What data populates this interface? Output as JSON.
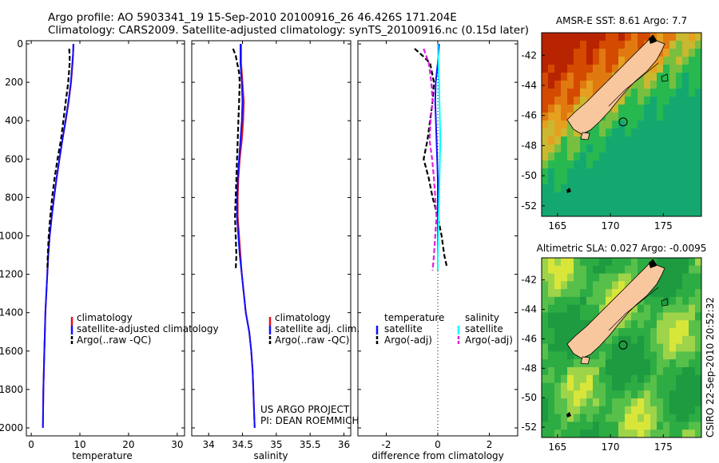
{
  "header": {
    "line1": "Argo profile: AO 5903341_19 15-Sep-2010 20100916_26 46.426S 171.204E",
    "line2": "Climatology: CARS2009. Satellite-adjusted climatology: synTS_20100916.nc (0.15d later)"
  },
  "credits": {
    "project": "US ARGO PROJECT",
    "pi": "PI: DEAN ROEMMICH",
    "stamp": "CSIRO 22-Sep-2010 20:52:32"
  },
  "depth_axis": {
    "ylim": [
      0,
      2000
    ],
    "ticks": [
      "0",
      "200",
      "400",
      "600",
      "800",
      "1000",
      "1200",
      "1400",
      "1600",
      "1800",
      "2000"
    ],
    "reversed": true
  },
  "chart_data": [
    {
      "type": "line",
      "id": "temperature",
      "xlabel": "temperature",
      "xlim": [
        -1,
        31.5
      ],
      "xticks": [
        0,
        10,
        20,
        30
      ],
      "xtick_labels": [
        "0",
        "10",
        "20",
        "30"
      ],
      "ylim": [
        0,
        2000
      ],
      "series": [
        {
          "name": "climatology",
          "color": "#e0101a",
          "dash": "solid",
          "points": [
            [
              8.7,
              0
            ],
            [
              8.6,
              50
            ],
            [
              8.5,
              100
            ],
            [
              8.2,
              200
            ],
            [
              7.7,
              300
            ],
            [
              7.1,
              400
            ],
            [
              6.4,
              500
            ],
            [
              5.8,
              600
            ],
            [
              5.2,
              700
            ],
            [
              4.7,
              800
            ],
            [
              4.2,
              900
            ],
            [
              3.8,
              1000
            ],
            [
              3.5,
              1100
            ],
            [
              3.3,
              1200
            ],
            [
              3.1,
              1300
            ],
            [
              2.9,
              1400
            ],
            [
              2.8,
              1500
            ],
            [
              2.7,
              1600
            ],
            [
              2.6,
              1700
            ],
            [
              2.5,
              1800
            ],
            [
              2.45,
              1900
            ],
            [
              2.4,
              2000
            ]
          ]
        },
        {
          "name": "satellite-adjusted climatology",
          "color": "#1010ff",
          "dash": "solid",
          "points": [
            [
              8.65,
              0
            ],
            [
              8.6,
              50
            ],
            [
              8.45,
              100
            ],
            [
              8.15,
              200
            ],
            [
              7.65,
              300
            ],
            [
              7.05,
              400
            ],
            [
              6.4,
              500
            ],
            [
              5.8,
              600
            ],
            [
              5.2,
              700
            ],
            [
              4.7,
              800
            ],
            [
              4.2,
              900
            ],
            [
              3.8,
              1000
            ],
            [
              3.5,
              1100
            ],
            [
              3.3,
              1200
            ],
            [
              3.1,
              1300
            ],
            [
              2.9,
              1400
            ],
            [
              2.8,
              1500
            ],
            [
              2.7,
              1600
            ],
            [
              2.6,
              1700
            ],
            [
              2.5,
              1800
            ],
            [
              2.45,
              1900
            ],
            [
              2.4,
              2000
            ]
          ]
        },
        {
          "name": "Argo(..raw -QC)",
          "color": "#000000",
          "dash": "dashed",
          "points": [
            [
              7.8,
              25
            ],
            [
              7.9,
              60
            ],
            [
              7.9,
              100
            ],
            [
              7.6,
              200
            ],
            [
              7.1,
              300
            ],
            [
              6.6,
              400
            ],
            [
              6.1,
              500
            ],
            [
              5.4,
              600
            ],
            [
              4.8,
              700
            ],
            [
              4.3,
              800
            ],
            [
              3.9,
              900
            ],
            [
              3.6,
              1000
            ],
            [
              3.4,
              1100
            ],
            [
              3.3,
              1180
            ]
          ]
        }
      ],
      "legend": {
        "placement": "lower-center"
      }
    },
    {
      "type": "line",
      "id": "salinity",
      "xlabel": "salinity",
      "xlim": [
        33.75,
        36.1
      ],
      "xticks": [
        34,
        34.5,
        35,
        35.5,
        36
      ],
      "xtick_labels": [
        "34",
        "34.5",
        "35",
        "35.5",
        "36"
      ],
      "ylim": [
        0,
        2000
      ],
      "series": [
        {
          "name": "climatology",
          "color": "#e0101a",
          "dash": "solid",
          "points": [
            [
              34.48,
              0
            ],
            [
              34.48,
              100
            ],
            [
              34.49,
              150
            ],
            [
              34.5,
              200
            ],
            [
              34.52,
              300
            ],
            [
              34.51,
              400
            ],
            [
              34.49,
              500
            ],
            [
              34.46,
              600
            ],
            [
              34.44,
              700
            ],
            [
              34.43,
              800
            ],
            [
              34.43,
              900
            ],
            [
              34.45,
              1000
            ],
            [
              34.47,
              1100
            ],
            [
              34.49,
              1200
            ],
            [
              34.52,
              1300
            ],
            [
              34.55,
              1400
            ],
            [
              34.6,
              1500
            ],
            [
              34.63,
              1600
            ],
            [
              34.65,
              1700
            ],
            [
              34.66,
              1800
            ],
            [
              34.67,
              1900
            ],
            [
              34.68,
              2000
            ]
          ]
        },
        {
          "name": "satellite adj. clim.",
          "color": "#1010ff",
          "dash": "solid",
          "points": [
            [
              34.47,
              0
            ],
            [
              34.47,
              100
            ],
            [
              34.48,
              150
            ],
            [
              34.49,
              200
            ],
            [
              34.5,
              300
            ],
            [
              34.49,
              400
            ],
            [
              34.47,
              500
            ],
            [
              34.45,
              600
            ],
            [
              34.43,
              700
            ],
            [
              34.42,
              800
            ],
            [
              34.42,
              900
            ],
            [
              34.44,
              1000
            ],
            [
              34.46,
              1100
            ],
            [
              34.49,
              1200
            ],
            [
              34.52,
              1300
            ],
            [
              34.55,
              1400
            ],
            [
              34.6,
              1500
            ],
            [
              34.63,
              1600
            ],
            [
              34.65,
              1700
            ],
            [
              34.66,
              1800
            ],
            [
              34.67,
              1900
            ],
            [
              34.68,
              2000
            ]
          ]
        },
        {
          "name": "Argo(..raw -QC)",
          "color": "#000000",
          "dash": "dashed",
          "points": [
            [
              34.36,
              25
            ],
            [
              34.4,
              60
            ],
            [
              34.45,
              150
            ],
            [
              34.46,
              200
            ],
            [
              34.45,
              300
            ],
            [
              34.44,
              400
            ],
            [
              34.43,
              500
            ],
            [
              34.42,
              600
            ],
            [
              34.41,
              700
            ],
            [
              34.4,
              800
            ],
            [
              34.39,
              900
            ],
            [
              34.4,
              1000
            ],
            [
              34.41,
              1100
            ],
            [
              34.4,
              1180
            ]
          ]
        }
      ],
      "legend": {
        "placement": "lower-center"
      }
    },
    {
      "type": "line",
      "id": "difference",
      "xlabel": "difference from climatology",
      "xlim": [
        -3.1,
        3.1
      ],
      "xticks": [
        -2,
        0,
        2
      ],
      "xtick_labels": [
        "-2",
        "0",
        "2"
      ],
      "ylim": [
        0,
        2000
      ],
      "zero_line": true,
      "series": [
        {
          "name": "temperature satellite",
          "color": "#1010ff",
          "dash": "solid",
          "points": [
            [
              0.05,
              0
            ],
            [
              0.0,
              100
            ],
            [
              -0.08,
              200
            ],
            [
              -0.1,
              300
            ],
            [
              -0.05,
              500
            ],
            [
              0.0,
              700
            ],
            [
              0.0,
              900
            ],
            [
              0.0,
              1100
            ],
            [
              0.0,
              1180
            ]
          ]
        },
        {
          "name": "temperature Argo(-adj)",
          "color": "#000000",
          "dash": "dashed",
          "points": [
            [
              -0.9,
              25
            ],
            [
              -0.6,
              60
            ],
            [
              -0.3,
              100
            ],
            [
              -0.15,
              200
            ],
            [
              -0.2,
              300
            ],
            [
              -0.3,
              400
            ],
            [
              -0.4,
              500
            ],
            [
              -0.55,
              600
            ],
            [
              -0.35,
              700
            ],
            [
              -0.2,
              800
            ],
            [
              0.0,
              900
            ],
            [
              0.15,
              1000
            ],
            [
              0.25,
              1100
            ],
            [
              0.35,
              1160
            ]
          ]
        },
        {
          "name": "salinity satellite",
          "color": "#00ffff",
          "dash": "solid",
          "points": [
            [
              0.0,
              0
            ],
            [
              0.05,
              200
            ],
            [
              0.1,
              500
            ],
            [
              0.05,
              800
            ],
            [
              0.0,
              1100
            ],
            [
              0.0,
              1180
            ]
          ]
        },
        {
          "name": "salinity Argo(-adj)",
          "color": "#e020e0",
          "dash": "dashed",
          "points": [
            [
              -0.55,
              25
            ],
            [
              -0.35,
              100
            ],
            [
              -0.25,
              200
            ],
            [
              -0.2,
              300
            ],
            [
              -0.28,
              400
            ],
            [
              -0.32,
              500
            ],
            [
              -0.22,
              600
            ],
            [
              -0.15,
              700
            ],
            [
              -0.1,
              800
            ],
            [
              -0.05,
              900
            ],
            [
              -0.1,
              1000
            ],
            [
              -0.15,
              1100
            ],
            [
              -0.2,
              1180
            ]
          ]
        }
      ],
      "legend": {
        "placement": "lower-center",
        "temperature_header": "temperature",
        "salinity_header": "salinity",
        "temperature_items": [
          "satellite",
          "Argo(-adj)"
        ],
        "salinity_items": [
          "satellite",
          "Argo(-adj)"
        ]
      }
    },
    {
      "type": "heatmap",
      "id": "sst_map",
      "title": "AMSR-E SST: 8.61 Argo: 7.7",
      "xlim": [
        163.5,
        178.6
      ],
      "ylim": [
        -52.7,
        -40.5
      ],
      "xticks": [
        165,
        170,
        175
      ],
      "xtick_labels": [
        "165",
        "170",
        "175"
      ],
      "yticks": [
        -42,
        -44,
        -46,
        -48,
        -50,
        -52
      ],
      "ytick_labels": [
        "-42",
        "-44",
        "-46",
        "-48",
        "-50",
        "-52"
      ],
      "float_position": {
        "lon": 171.204,
        "lat": -46.426
      },
      "palette": "sst"
    },
    {
      "type": "heatmap",
      "id": "sla_map",
      "title": "Altimetric SLA: 0.027 Argo: -0.0095",
      "xlim": [
        163.5,
        178.6
      ],
      "ylim": [
        -52.7,
        -40.5
      ],
      "xticks": [
        165,
        170,
        175
      ],
      "xtick_labels": [
        "165",
        "170",
        "175"
      ],
      "yticks": [
        -42,
        -44,
        -46,
        -48,
        -50,
        -52
      ],
      "ytick_labels": [
        "-42",
        "-44",
        "-46",
        "-48",
        "-50",
        "-52"
      ],
      "float_position": {
        "lon": 171.204,
        "lat": -46.426
      },
      "palette": "sla"
    }
  ],
  "legends": {
    "temperature": [
      "climatology",
      "satellite-adjusted climatology",
      "Argo(..raw -QC)"
    ],
    "salinity": [
      "climatology",
      "satellite adj. clim.",
      "Argo(..raw -QC)"
    ]
  }
}
